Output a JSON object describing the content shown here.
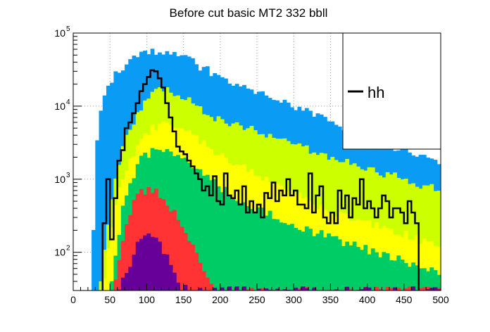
{
  "chart_data": {
    "type": "histogram",
    "title": "Before cut basic MT2 332 bbll",
    "xlabel": "",
    "ylabel": "",
    "xlim": [
      0,
      500
    ],
    "ylim": [
      30,
      100000
    ],
    "log_y": true,
    "bin_width": 5,
    "grid": true,
    "x_ticks": [
      "0",
      "50",
      "100",
      "150",
      "200",
      "250",
      "300",
      "350",
      "400",
      "450",
      "500"
    ],
    "y_ticks": [
      {
        "base": "10",
        "exp": "2",
        "value": 100
      },
      {
        "base": "10",
        "exp": "3",
        "value": 1000
      },
      {
        "base": "10",
        "exp": "4",
        "value": 10000
      },
      {
        "base": "10",
        "exp": "5",
        "value": 100000
      }
    ],
    "legend": {
      "position": "top-right",
      "entries": [
        {
          "label": "hh",
          "color": "#000000"
        }
      ]
    },
    "stack": [
      {
        "color": "#0a9bf5",
        "keys": [
          25,
          30,
          35,
          40,
          50,
          60,
          80,
          100,
          120,
          140,
          160,
          180,
          200,
          220,
          250,
          300,
          350,
          400,
          450,
          500
        ],
        "vals": [
          30,
          1500,
          6000,
          12000,
          20000,
          30000,
          45000,
          55000,
          55000,
          50000,
          42000,
          32000,
          25000,
          20000,
          15000,
          10000,
          6000,
          4000,
          2500,
          1600
        ]
      },
      {
        "color": "#ccff00",
        "keys": [
          35,
          45,
          55,
          70,
          90,
          110,
          130,
          150,
          175,
          200,
          250,
          300,
          350,
          400,
          450,
          500
        ],
        "vals": [
          30,
          150,
          700,
          3500,
          9000,
          15000,
          18000,
          13000,
          9000,
          6500,
          4500,
          3000,
          2000,
          1400,
          1000,
          700
        ]
      },
      {
        "color": "#ffff00",
        "keys": [
          40,
          50,
          60,
          80,
          100,
          120,
          140,
          160,
          180,
          200,
          240,
          280,
          320,
          360,
          400,
          450,
          500
        ],
        "vals": [
          30,
          150,
          600,
          2000,
          4500,
          6000,
          5500,
          4000,
          3000,
          2200,
          1300,
          800,
          500,
          350,
          250,
          180,
          120
        ]
      },
      {
        "color": "#00cc66",
        "keys": [
          50,
          60,
          70,
          90,
          110,
          130,
          150,
          170,
          200,
          230,
          260,
          300,
          350,
          400,
          450,
          500
        ],
        "vals": [
          30,
          120,
          600,
          1800,
          2600,
          2400,
          1800,
          1300,
          800,
          500,
          350,
          240,
          160,
          110,
          75,
          50
        ]
      },
      {
        "color": "#ff3333",
        "keys": [
          55,
          65,
          75,
          85,
          95,
          105,
          115,
          125,
          135,
          145,
          155,
          165,
          175,
          185,
          195
        ],
        "vals": [
          30,
          110,
          300,
          550,
          700,
          720,
          650,
          520,
          380,
          250,
          160,
          100,
          60,
          38,
          30
        ]
      },
      {
        "color": "#660099",
        "keys": [
          60,
          70,
          80,
          90,
          100,
          110,
          120,
          130,
          140,
          150,
          160
        ],
        "vals": [
          30,
          45,
          70,
          150,
          180,
          160,
          120,
          75,
          45,
          32,
          30
        ]
      }
    ],
    "signal": {
      "label": "hh",
      "color": "#000000",
      "bin_width": 5,
      "bin_edges_start": 40,
      "values": [
        250,
        1000,
        150,
        550,
        1800,
        2500,
        5000,
        6000,
        8000,
        11000,
        16000,
        20000,
        25000,
        31000,
        30000,
        24000,
        18000,
        11000,
        7000,
        4500,
        2800,
        2400,
        2200,
        1800,
        1500,
        1200,
        1000,
        700,
        800,
        600,
        1100,
        500,
        450,
        1200,
        600,
        550,
        700,
        450,
        800,
        350,
        500,
        350,
        450,
        300,
        650,
        550,
        900,
        500,
        700,
        600,
        1000,
        600,
        700,
        450,
        450,
        400,
        1200,
        350,
        600,
        800,
        300,
        250,
        350,
        250,
        700,
        400,
        600,
        300,
        550,
        450,
        1000,
        400,
        500,
        400,
        300,
        400,
        600,
        500,
        300,
        400,
        400,
        350,
        250,
        500,
        350,
        250
      ]
    }
  }
}
